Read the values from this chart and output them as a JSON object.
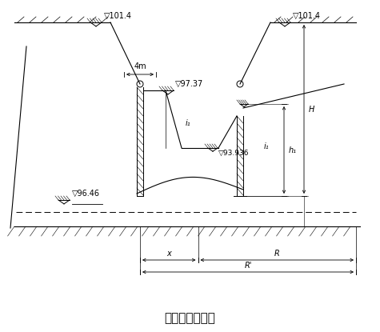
{
  "title": "涌水量计算简图",
  "title_fontsize": 11,
  "bg_color": "#ffffff",
  "line_color": "#000000",
  "labels": {
    "elev_101_4_left": "▽101.4",
    "elev_101_4_right": "▽101.4",
    "elev_97_37": "▽97.37",
    "elev_96_46": "▽96.46",
    "elev_93_936": "▽93.936",
    "dim_4m": "4m",
    "label_x": "x",
    "label_R": "R",
    "label_R2": "R'",
    "label_i1": "i₁",
    "label_i2": "i₁",
    "label_h1": "h₁",
    "label_h": "H"
  },
  "font_size": 7,
  "small_font": 6
}
